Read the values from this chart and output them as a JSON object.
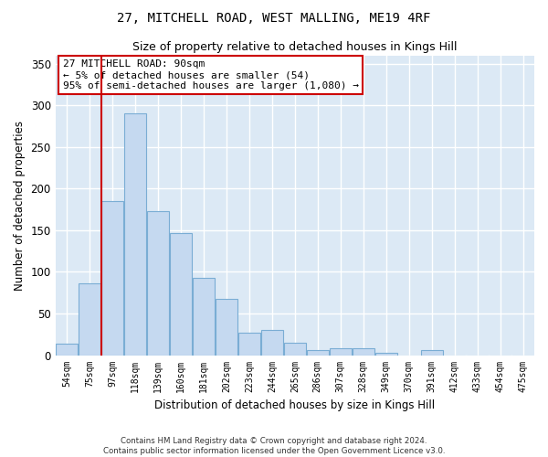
{
  "title": "27, MITCHELL ROAD, WEST MALLING, ME19 4RF",
  "subtitle": "Size of property relative to detached houses in Kings Hill",
  "xlabel": "Distribution of detached houses by size in Kings Hill",
  "ylabel": "Number of detached properties",
  "categories": [
    "54sqm",
    "75sqm",
    "97sqm",
    "118sqm",
    "139sqm",
    "160sqm",
    "181sqm",
    "202sqm",
    "223sqm",
    "244sqm",
    "265sqm",
    "286sqm",
    "307sqm",
    "328sqm",
    "349sqm",
    "370sqm",
    "391sqm",
    "412sqm",
    "433sqm",
    "454sqm",
    "475sqm"
  ],
  "values": [
    14,
    86,
    185,
    290,
    173,
    147,
    93,
    68,
    27,
    30,
    15,
    6,
    8,
    8,
    3,
    0,
    6,
    0,
    0,
    0,
    0
  ],
  "bar_color": "#c5d9f0",
  "bar_edge_color": "#7aadd4",
  "reference_line_x": 1.5,
  "reference_line_color": "#cc0000",
  "annotation_text": "27 MITCHELL ROAD: 90sqm\n← 5% of detached houses are smaller (54)\n95% of semi-detached houses are larger (1,080) →",
  "annotation_box_color": "#ffffff",
  "annotation_box_edge": "#cc0000",
  "ylim": [
    0,
    360
  ],
  "yticks": [
    0,
    50,
    100,
    150,
    200,
    250,
    300,
    350
  ],
  "background_color": "#dce9f5",
  "grid_color": "#ffffff",
  "fig_bg_color": "#ffffff",
  "footer_line1": "Contains HM Land Registry data © Crown copyright and database right 2024.",
  "footer_line2": "Contains public sector information licensed under the Open Government Licence v3.0."
}
